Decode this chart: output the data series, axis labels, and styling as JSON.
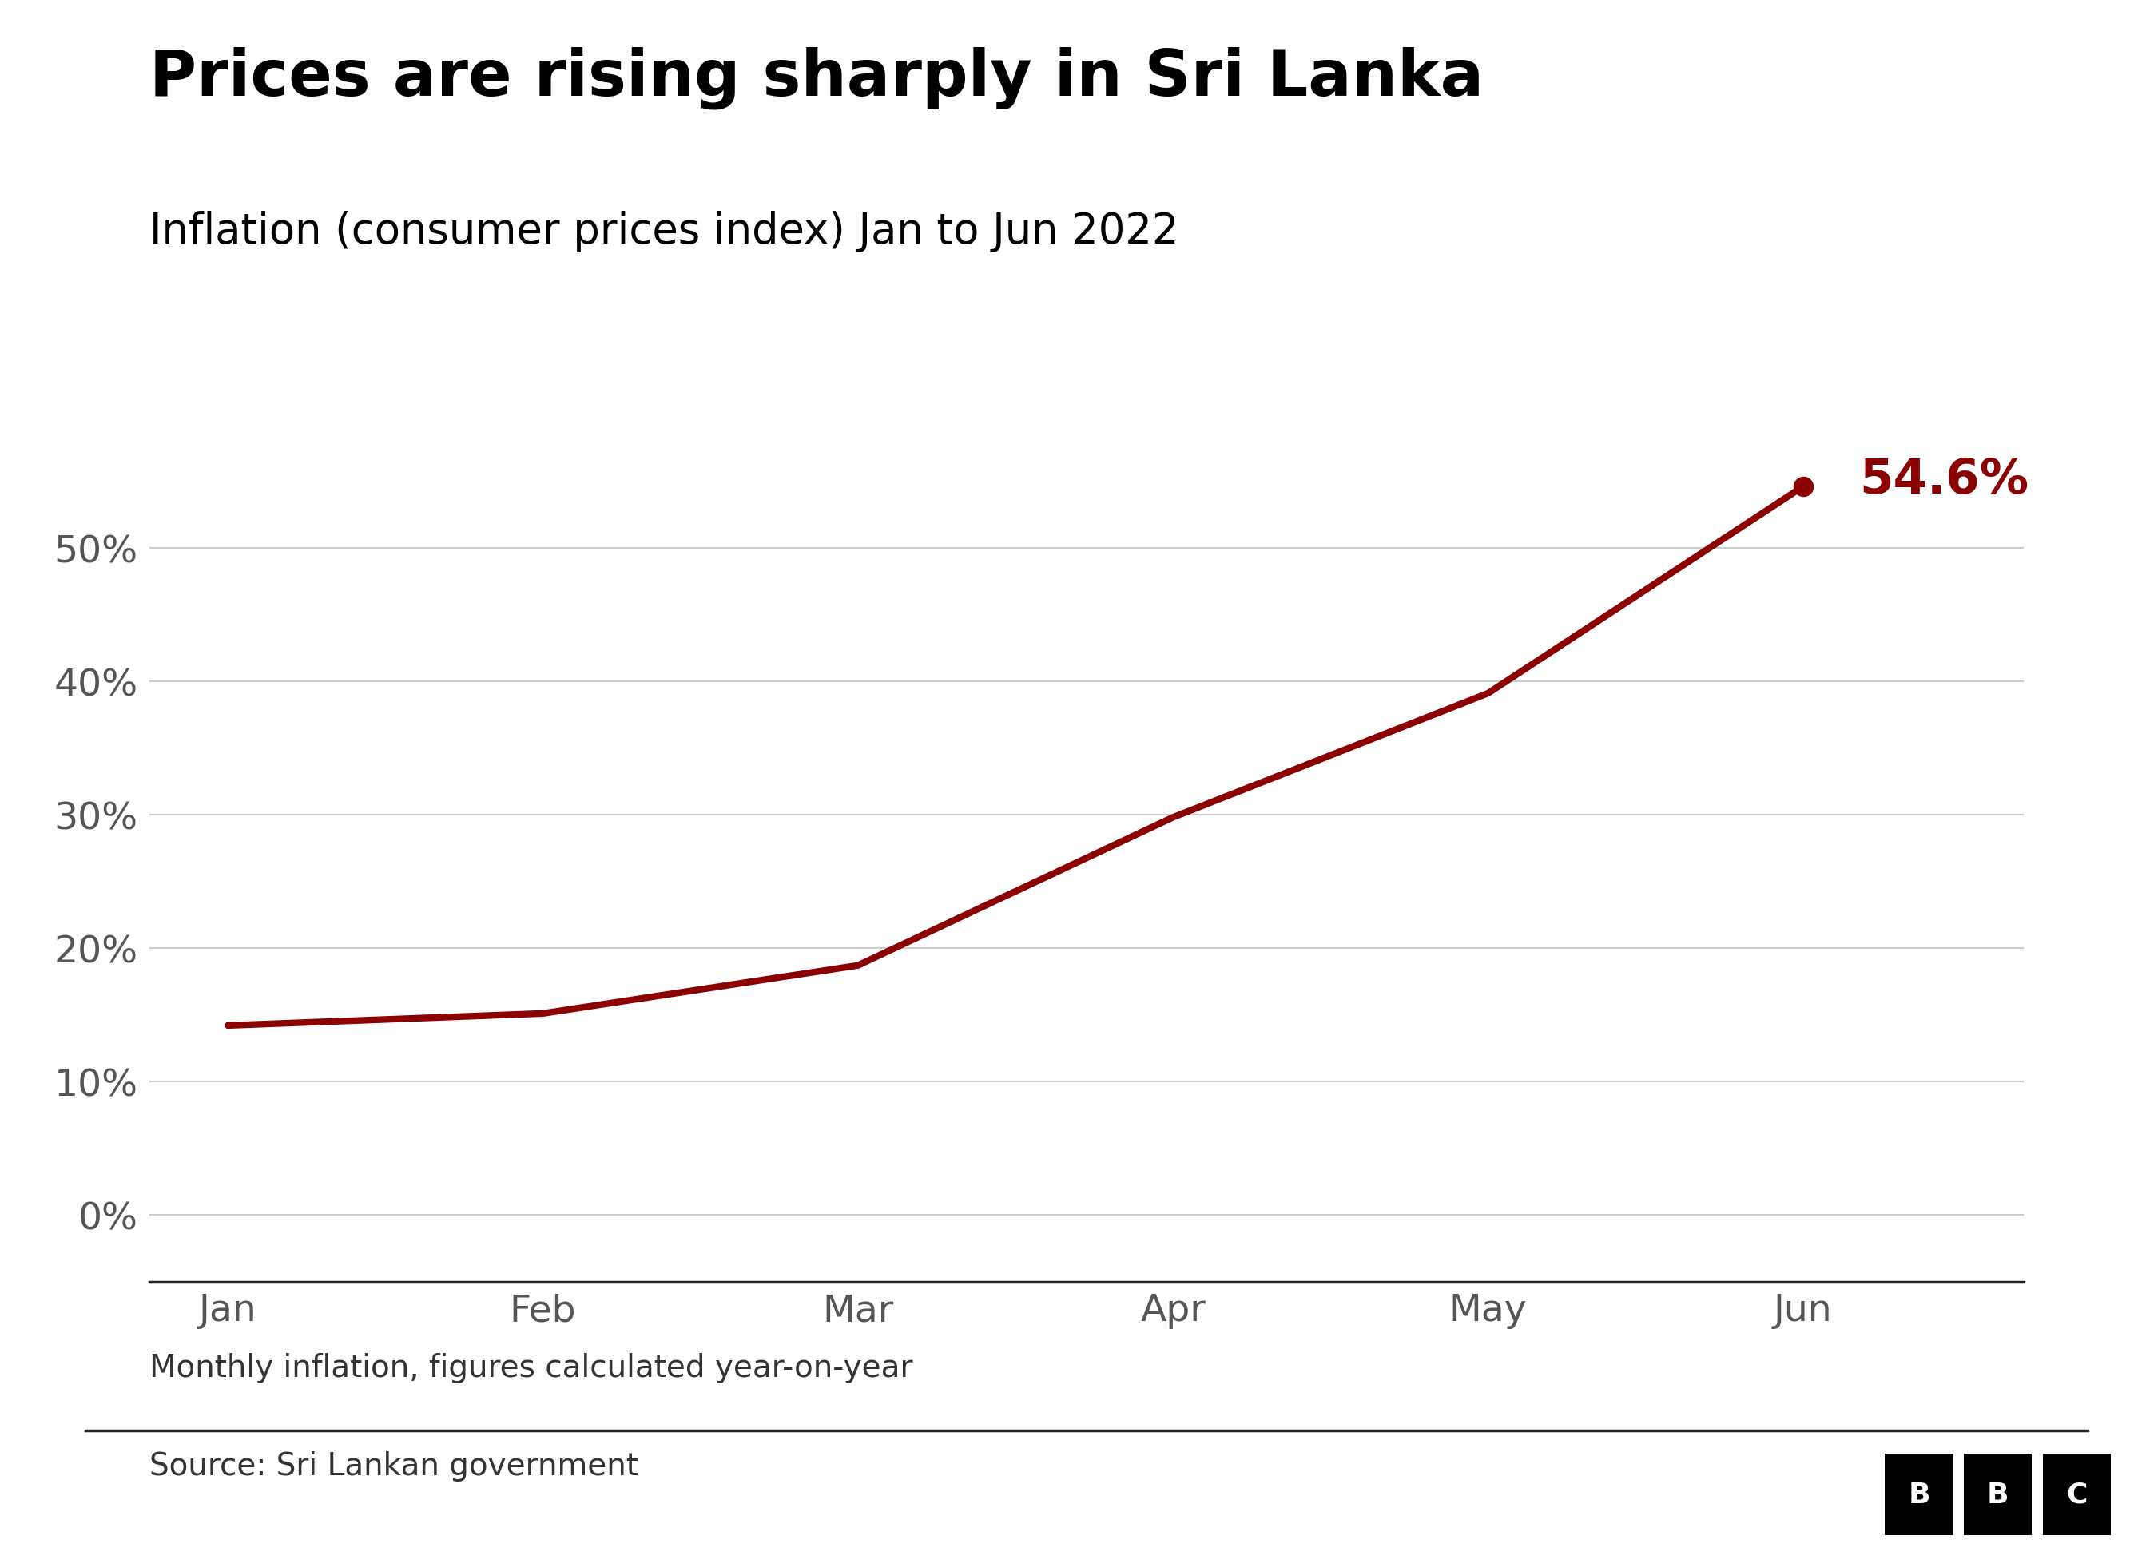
{
  "title": "Prices are rising sharply in Sri Lanka",
  "subtitle": "Inflation (consumer prices index) Jan to Jun 2022",
  "months": [
    "Jan",
    "Feb",
    "Mar",
    "Apr",
    "May",
    "Jun"
  ],
  "values": [
    14.2,
    15.1,
    18.7,
    29.8,
    39.1,
    54.6
  ],
  "line_color": "#8B0000",
  "marker_color": "#8B0000",
  "annotation_text": "54.6%",
  "annotation_color": "#8B0000",
  "ylabel_ticks": [
    0,
    10,
    20,
    30,
    40,
    50
  ],
  "ylim": [
    -5,
    63
  ],
  "footnote": "Monthly inflation, figures calculated year-on-year",
  "source": "Source: Sri Lankan government",
  "bg_color": "#ffffff",
  "grid_color": "#cccccc",
  "tick_label_color": "#555555",
  "title_fontsize": 58,
  "subtitle_fontsize": 38,
  "tick_fontsize": 34,
  "annotation_fontsize": 44,
  "footnote_fontsize": 28,
  "source_fontsize": 28
}
